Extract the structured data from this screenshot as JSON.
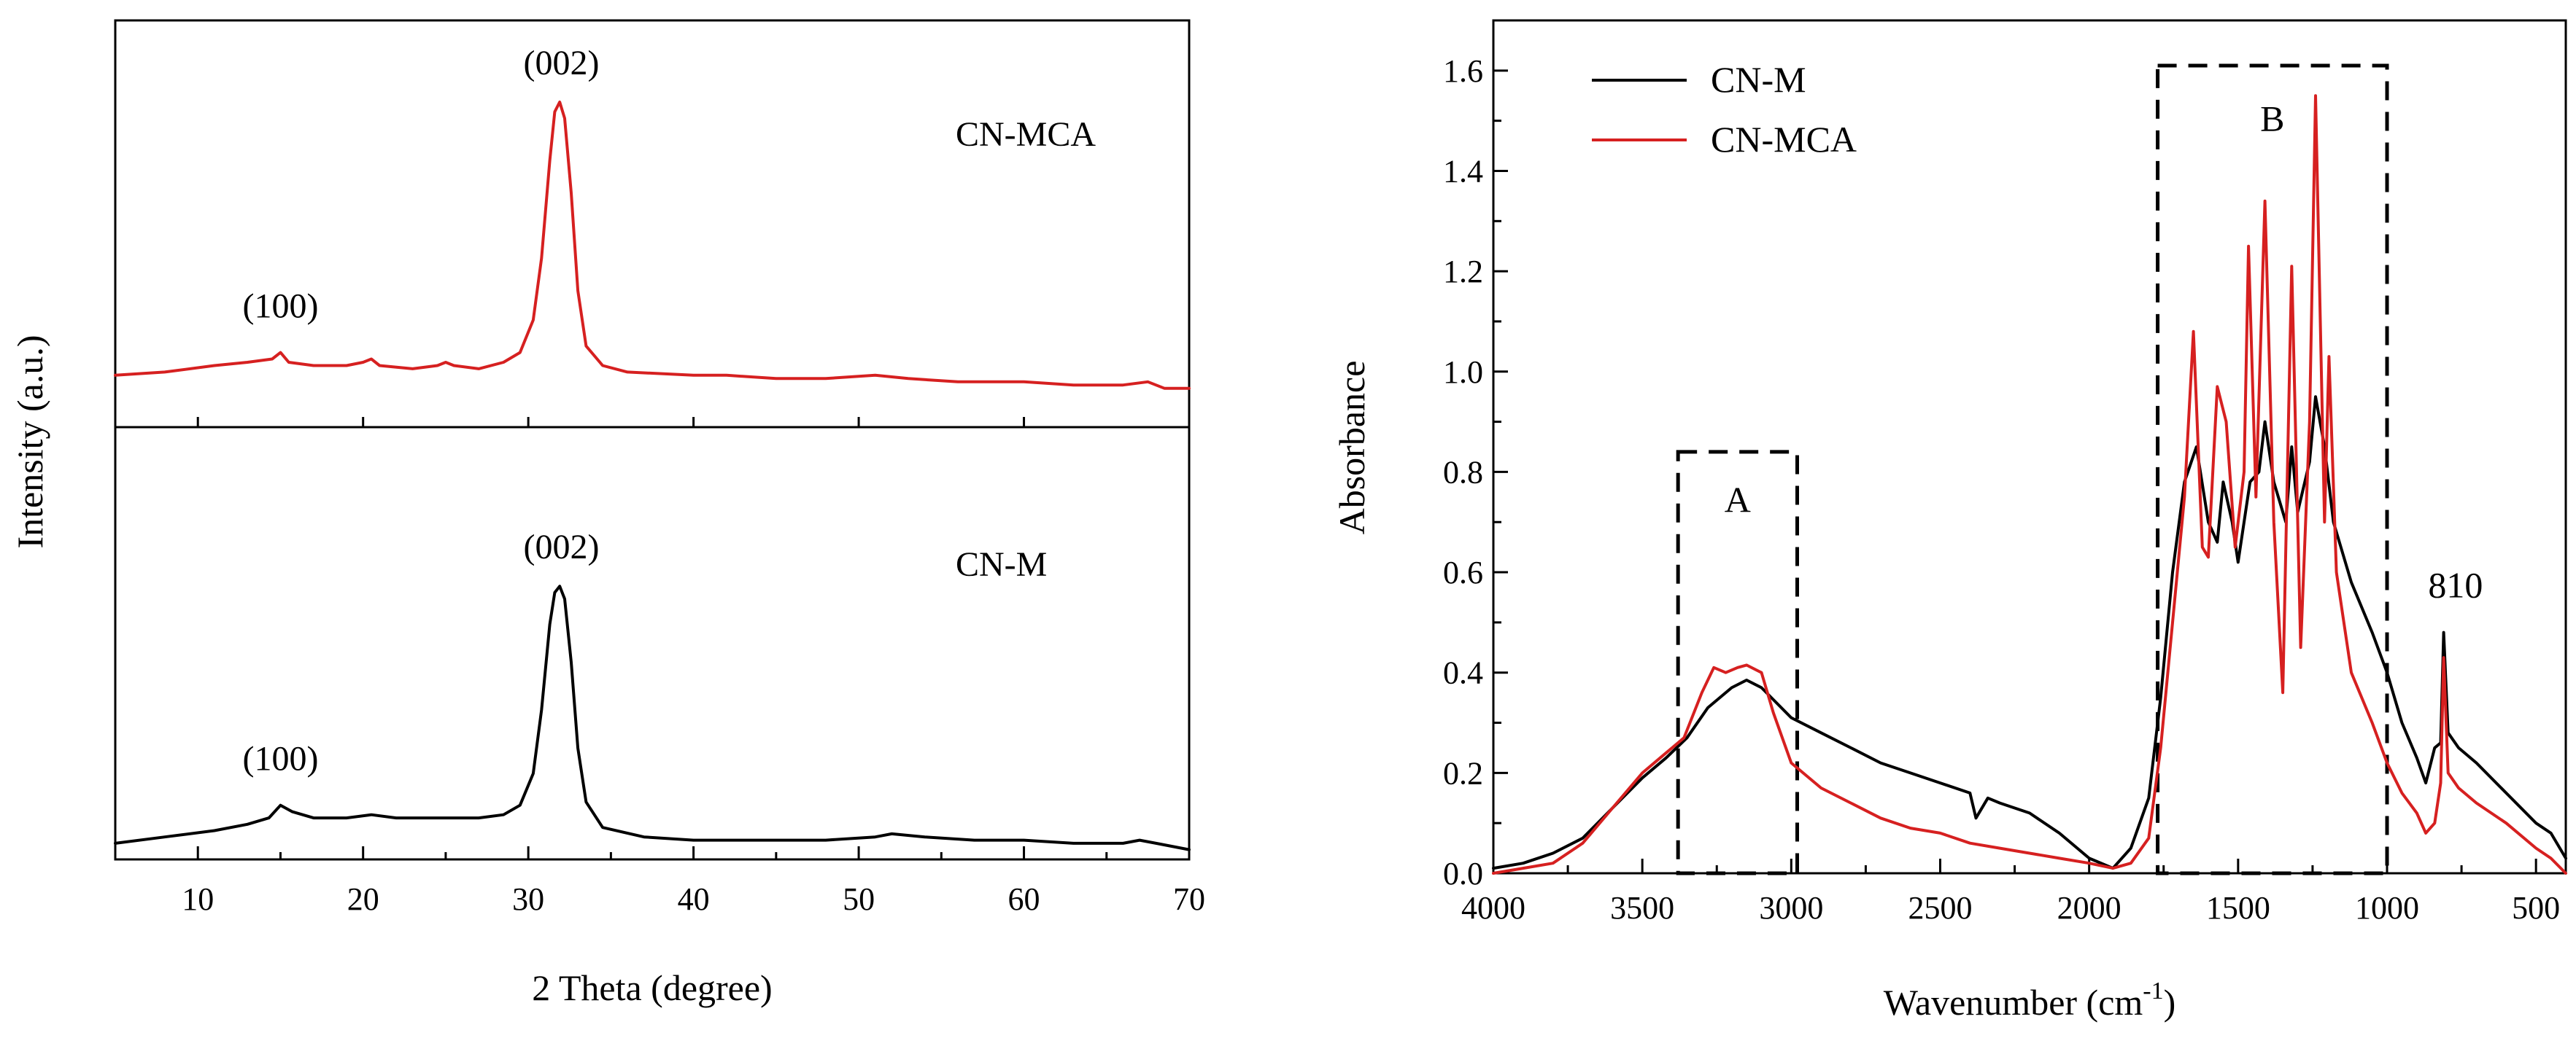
{
  "colors": {
    "cn_m": "#000000",
    "cn_mca": "#d62020"
  },
  "chart_data": [
    {
      "type": "line",
      "title": "",
      "xlabel": "2 Theta (degree)",
      "ylabel": "Intensity (a.u.)",
      "xlim": [
        5,
        70
      ],
      "x_ticks": [
        10,
        20,
        30,
        40,
        50,
        60,
        70
      ],
      "grid": false,
      "y_ticks_shown": false,
      "panels": [
        {
          "name": "CN-MCA",
          "color": "#d62020",
          "label": "CN-MCA",
          "ylim": [
            0,
            100
          ],
          "series": [
            {
              "name": "CN-MCA",
              "points": [
                [
                  5,
                  9
                ],
                [
                  8,
                  10
                ],
                [
                  11,
                  12
                ],
                [
                  13,
                  13
                ],
                [
                  14.5,
                  14
                ],
                [
                  15,
                  16
                ],
                [
                  15.5,
                  13
                ],
                [
                  17,
                  12
                ],
                [
                  19,
                  12
                ],
                [
                  20,
                  13
                ],
                [
                  20.5,
                  14
                ],
                [
                  21,
                  12
                ],
                [
                  23,
                  11
                ],
                [
                  24.5,
                  12
                ],
                [
                  25,
                  13
                ],
                [
                  25.5,
                  12
                ],
                [
                  27,
                  11
                ],
                [
                  28.5,
                  13
                ],
                [
                  29.5,
                  16
                ],
                [
                  30.3,
                  26
                ],
                [
                  30.8,
                  45
                ],
                [
                  31.3,
                  75
                ],
                [
                  31.6,
                  90
                ],
                [
                  31.9,
                  93
                ],
                [
                  32.2,
                  88
                ],
                [
                  32.6,
                  65
                ],
                [
                  33,
                  35
                ],
                [
                  33.5,
                  18
                ],
                [
                  34.5,
                  12
                ],
                [
                  36,
                  10
                ],
                [
                  40,
                  9
                ],
                [
                  42,
                  9
                ],
                [
                  45,
                  8
                ],
                [
                  48,
                  8
                ],
                [
                  51,
                  9
                ],
                [
                  53,
                  8
                ],
                [
                  56,
                  7
                ],
                [
                  60,
                  7
                ],
                [
                  63,
                  6
                ],
                [
                  66,
                  6
                ],
                [
                  67.5,
                  7
                ],
                [
                  68.5,
                  5
                ],
                [
                  70,
                  5
                ]
              ]
            }
          ],
          "annotations": [
            {
              "text": "(002)",
              "x": 32,
              "y": 93
            },
            {
              "text": "(100)",
              "x": 15,
              "y": 16
            }
          ]
        },
        {
          "name": "CN-M",
          "color": "#000000",
          "label": "CN-M",
          "ylim": [
            0,
            100
          ],
          "series": [
            {
              "name": "CN-M",
              "points": [
                [
                  5,
                  3
                ],
                [
                  8,
                  5
                ],
                [
                  11,
                  7
                ],
                [
                  13,
                  9
                ],
                [
                  14.3,
                  11
                ],
                [
                  15,
                  15
                ],
                [
                  15.7,
                  13
                ],
                [
                  17,
                  11
                ],
                [
                  19,
                  11
                ],
                [
                  20.5,
                  12
                ],
                [
                  22,
                  11
                ],
                [
                  25,
                  11
                ],
                [
                  27,
                  11
                ],
                [
                  28.5,
                  12
                ],
                [
                  29.5,
                  15
                ],
                [
                  30.3,
                  25
                ],
                [
                  30.8,
                  45
                ],
                [
                  31.3,
                  72
                ],
                [
                  31.6,
                  82
                ],
                [
                  31.9,
                  84
                ],
                [
                  32.2,
                  80
                ],
                [
                  32.6,
                  60
                ],
                [
                  33,
                  33
                ],
                [
                  33.5,
                  16
                ],
                [
                  34.5,
                  8
                ],
                [
                  37,
                  5
                ],
                [
                  40,
                  4
                ],
                [
                  45,
                  4
                ],
                [
                  48,
                  4
                ],
                [
                  51,
                  5
                ],
                [
                  52,
                  6
                ],
                [
                  54,
                  5
                ],
                [
                  57,
                  4
                ],
                [
                  60,
                  4
                ],
                [
                  63,
                  3
                ],
                [
                  66,
                  3
                ],
                [
                  67,
                  4
                ],
                [
                  68,
                  3
                ],
                [
                  70,
                  1
                ]
              ]
            }
          ],
          "annotations": [
            {
              "text": "(002)",
              "x": 32,
              "y": 84
            },
            {
              "text": "(100)",
              "x": 15,
              "y": 15
            }
          ]
        }
      ]
    },
    {
      "type": "line",
      "title": "",
      "xlabel": "Wavenumber (cm",
      "xlabel_superscript": "-1",
      "xlabel_suffix": ")",
      "ylabel": "Absorbance",
      "xlim": [
        4000,
        400
      ],
      "ylim": [
        0,
        1.7
      ],
      "x_ticks": [
        4000,
        3500,
        3000,
        2500,
        2000,
        1500,
        1000,
        500
      ],
      "y_ticks": [
        0.0,
        0.2,
        0.4,
        0.6,
        0.8,
        1.0,
        1.2,
        1.4,
        1.6
      ],
      "grid": false,
      "legend_position": "top-left",
      "series": [
        {
          "name": "CN-M",
          "color": "#000000",
          "points": [
            [
              4000,
              0.01
            ],
            [
              3900,
              0.02
            ],
            [
              3800,
              0.04
            ],
            [
              3700,
              0.07
            ],
            [
              3600,
              0.13
            ],
            [
              3500,
              0.19
            ],
            [
              3420,
              0.23
            ],
            [
              3350,
              0.27
            ],
            [
              3280,
              0.33
            ],
            [
              3200,
              0.37
            ],
            [
              3150,
              0.385
            ],
            [
              3100,
              0.37
            ],
            [
              3050,
              0.34
            ],
            [
              3000,
              0.31
            ],
            [
              2900,
              0.28
            ],
            [
              2800,
              0.25
            ],
            [
              2700,
              0.22
            ],
            [
              2600,
              0.2
            ],
            [
              2500,
              0.18
            ],
            [
              2400,
              0.16
            ],
            [
              2380,
              0.11
            ],
            [
              2340,
              0.15
            ],
            [
              2300,
              0.14
            ],
            [
              2200,
              0.12
            ],
            [
              2100,
              0.08
            ],
            [
              2000,
              0.03
            ],
            [
              1920,
              0.01
            ],
            [
              1860,
              0.05
            ],
            [
              1800,
              0.15
            ],
            [
              1760,
              0.35
            ],
            [
              1720,
              0.6
            ],
            [
              1680,
              0.78
            ],
            [
              1640,
              0.85
            ],
            [
              1600,
              0.7
            ],
            [
              1570,
              0.66
            ],
            [
              1550,
              0.78
            ],
            [
              1520,
              0.7
            ],
            [
              1500,
              0.62
            ],
            [
              1460,
              0.78
            ],
            [
              1430,
              0.8
            ],
            [
              1410,
              0.9
            ],
            [
              1380,
              0.78
            ],
            [
              1340,
              0.7
            ],
            [
              1320,
              0.85
            ],
            [
              1300,
              0.72
            ],
            [
              1260,
              0.82
            ],
            [
              1240,
              0.95
            ],
            [
              1210,
              0.85
            ],
            [
              1180,
              0.7
            ],
            [
              1120,
              0.58
            ],
            [
              1050,
              0.48
            ],
            [
              1000,
              0.4
            ],
            [
              950,
              0.3
            ],
            [
              900,
              0.23
            ],
            [
              870,
              0.18
            ],
            [
              840,
              0.25
            ],
            [
              820,
              0.26
            ],
            [
              810,
              0.48
            ],
            [
              795,
              0.28
            ],
            [
              760,
              0.25
            ],
            [
              700,
              0.22
            ],
            [
              600,
              0.16
            ],
            [
              500,
              0.1
            ],
            [
              450,
              0.08
            ],
            [
              400,
              0.03
            ]
          ]
        },
        {
          "name": "CN-MCA",
          "color": "#d62020",
          "points": [
            [
              4000,
              0.0
            ],
            [
              3900,
              0.01
            ],
            [
              3800,
              0.02
            ],
            [
              3700,
              0.06
            ],
            [
              3600,
              0.13
            ],
            [
              3500,
              0.2
            ],
            [
              3420,
              0.24
            ],
            [
              3360,
              0.27
            ],
            [
              3300,
              0.36
            ],
            [
              3260,
              0.41
            ],
            [
              3220,
              0.4
            ],
            [
              3180,
              0.41
            ],
            [
              3150,
              0.415
            ],
            [
              3100,
              0.4
            ],
            [
              3060,
              0.32
            ],
            [
              3000,
              0.22
            ],
            [
              2900,
              0.17
            ],
            [
              2800,
              0.14
            ],
            [
              2700,
              0.11
            ],
            [
              2600,
              0.09
            ],
            [
              2500,
              0.08
            ],
            [
              2400,
              0.06
            ],
            [
              2300,
              0.05
            ],
            [
              2200,
              0.04
            ],
            [
              2100,
              0.03
            ],
            [
              2000,
              0.02
            ],
            [
              1920,
              0.01
            ],
            [
              1860,
              0.02
            ],
            [
              1800,
              0.07
            ],
            [
              1760,
              0.25
            ],
            [
              1720,
              0.5
            ],
            [
              1680,
              0.75
            ],
            [
              1650,
              1.08
            ],
            [
              1620,
              0.65
            ],
            [
              1600,
              0.63
            ],
            [
              1570,
              0.97
            ],
            [
              1540,
              0.9
            ],
            [
              1510,
              0.65
            ],
            [
              1480,
              0.8
            ],
            [
              1465,
              1.25
            ],
            [
              1440,
              0.75
            ],
            [
              1410,
              1.34
            ],
            [
              1380,
              0.7
            ],
            [
              1350,
              0.36
            ],
            [
              1320,
              1.21
            ],
            [
              1290,
              0.45
            ],
            [
              1260,
              0.9
            ],
            [
              1240,
              1.55
            ],
            [
              1210,
              0.7
            ],
            [
              1195,
              1.03
            ],
            [
              1170,
              0.6
            ],
            [
              1120,
              0.4
            ],
            [
              1050,
              0.3
            ],
            [
              1000,
              0.22
            ],
            [
              950,
              0.16
            ],
            [
              900,
              0.12
            ],
            [
              870,
              0.08
            ],
            [
              840,
              0.1
            ],
            [
              820,
              0.18
            ],
            [
              810,
              0.43
            ],
            [
              795,
              0.2
            ],
            [
              760,
              0.17
            ],
            [
              700,
              0.14
            ],
            [
              600,
              0.1
            ],
            [
              500,
              0.05
            ],
            [
              450,
              0.03
            ],
            [
              400,
              0.0
            ]
          ]
        }
      ],
      "annotations": [
        {
          "text": "A",
          "x": 3180,
          "y": 0.72
        },
        {
          "text": "B",
          "x": 1385,
          "y": 1.48
        },
        {
          "text": "810",
          "x": 770,
          "y": 0.55
        }
      ],
      "dashed_boxes": [
        {
          "name": "A",
          "x0": 3380,
          "x1": 2980,
          "y0": 0.0,
          "y1": 0.84
        },
        {
          "name": "B",
          "x0": 1770,
          "x1": 1000,
          "y0": 0.0,
          "y1": 1.61
        }
      ]
    }
  ]
}
